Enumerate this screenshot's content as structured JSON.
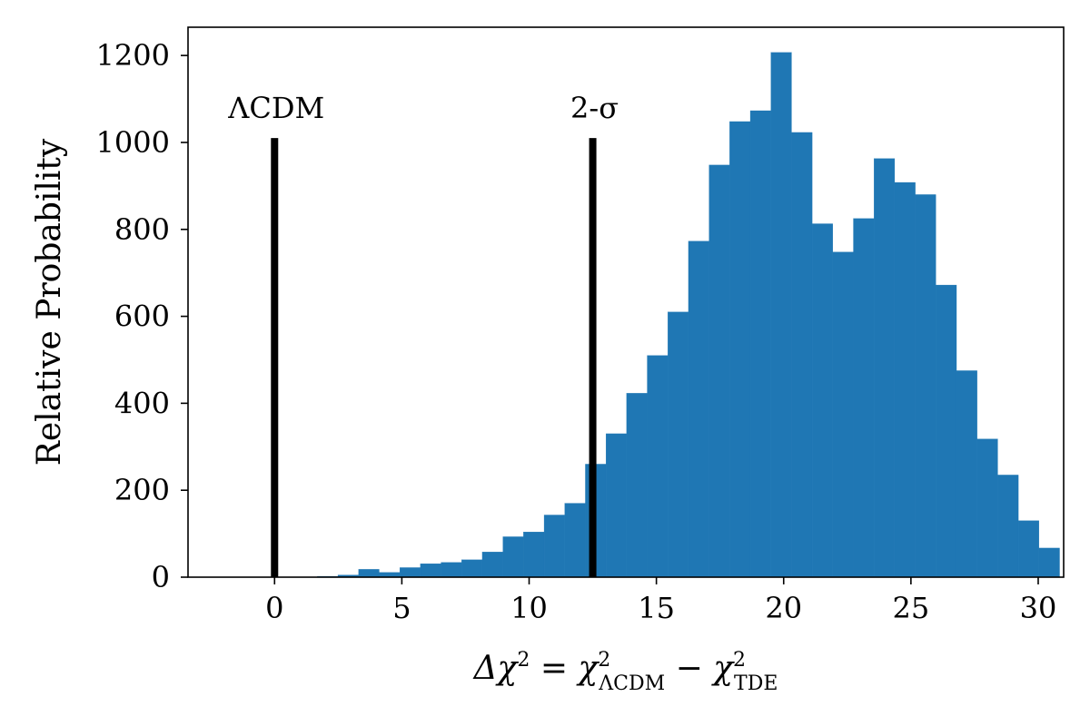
{
  "chart_data": {
    "type": "bar",
    "title": "",
    "xlabel": "Δχ² = χ²_ΛCDM − χ²_TDE",
    "xlabel_parts": {
      "lead": "Δχ",
      "sup1": "2",
      "eq": " = ",
      "chi1": "χ",
      "sup2": "2",
      "sub1": "ΛCDM",
      "minus": " − ",
      "chi2": "χ",
      "sup3": "2",
      "sub2": "TDE"
    },
    "ylabel": "Relative Probability",
    "xlim": [
      -3.4,
      31.0
    ],
    "ylim": [
      0,
      1265
    ],
    "xticks": [
      0,
      5,
      10,
      15,
      20,
      25,
      30
    ],
    "yticks": [
      0,
      200,
      400,
      600,
      800,
      1000,
      1200
    ],
    "grid": false,
    "bar_color": "#1f77b4",
    "bin_width": 0.81,
    "bins": [
      {
        "x0": 0.87,
        "value": 0
      },
      {
        "x0": 1.68,
        "value": 2
      },
      {
        "x0": 2.49,
        "value": 5
      },
      {
        "x0": 3.3,
        "value": 18
      },
      {
        "x0": 4.11,
        "value": 11
      },
      {
        "x0": 4.92,
        "value": 22
      },
      {
        "x0": 5.73,
        "value": 31
      },
      {
        "x0": 6.54,
        "value": 34
      },
      {
        "x0": 7.35,
        "value": 40
      },
      {
        "x0": 8.16,
        "value": 58
      },
      {
        "x0": 8.97,
        "value": 93
      },
      {
        "x0": 9.78,
        "value": 104
      },
      {
        "x0": 10.59,
        "value": 143
      },
      {
        "x0": 11.4,
        "value": 170
      },
      {
        "x0": 12.21,
        "value": 260
      },
      {
        "x0": 13.02,
        "value": 330
      },
      {
        "x0": 13.83,
        "value": 423
      },
      {
        "x0": 14.64,
        "value": 510
      },
      {
        "x0": 15.45,
        "value": 610
      },
      {
        "x0": 16.26,
        "value": 773
      },
      {
        "x0": 17.07,
        "value": 948
      },
      {
        "x0": 17.88,
        "value": 1048
      },
      {
        "x0": 18.69,
        "value": 1073
      },
      {
        "x0": 19.5,
        "value": 1207
      },
      {
        "x0": 20.31,
        "value": 1023
      },
      {
        "x0": 21.12,
        "value": 813
      },
      {
        "x0": 21.93,
        "value": 748
      },
      {
        "x0": 22.74,
        "value": 825
      },
      {
        "x0": 23.55,
        "value": 963
      },
      {
        "x0": 24.36,
        "value": 908
      },
      {
        "x0": 25.17,
        "value": 880
      },
      {
        "x0": 25.98,
        "value": 672
      },
      {
        "x0": 26.79,
        "value": 475
      },
      {
        "x0": 27.6,
        "value": 318
      },
      {
        "x0": 28.41,
        "value": 235
      },
      {
        "x0": 29.22,
        "value": 130
      },
      {
        "x0": 30.03,
        "value": 67
      }
    ],
    "annotations": [
      {
        "label": "ΛCDM",
        "x": 0,
        "height": 1010
      },
      {
        "label": "2-σ",
        "x": 12.5,
        "height": 1010
      }
    ]
  }
}
